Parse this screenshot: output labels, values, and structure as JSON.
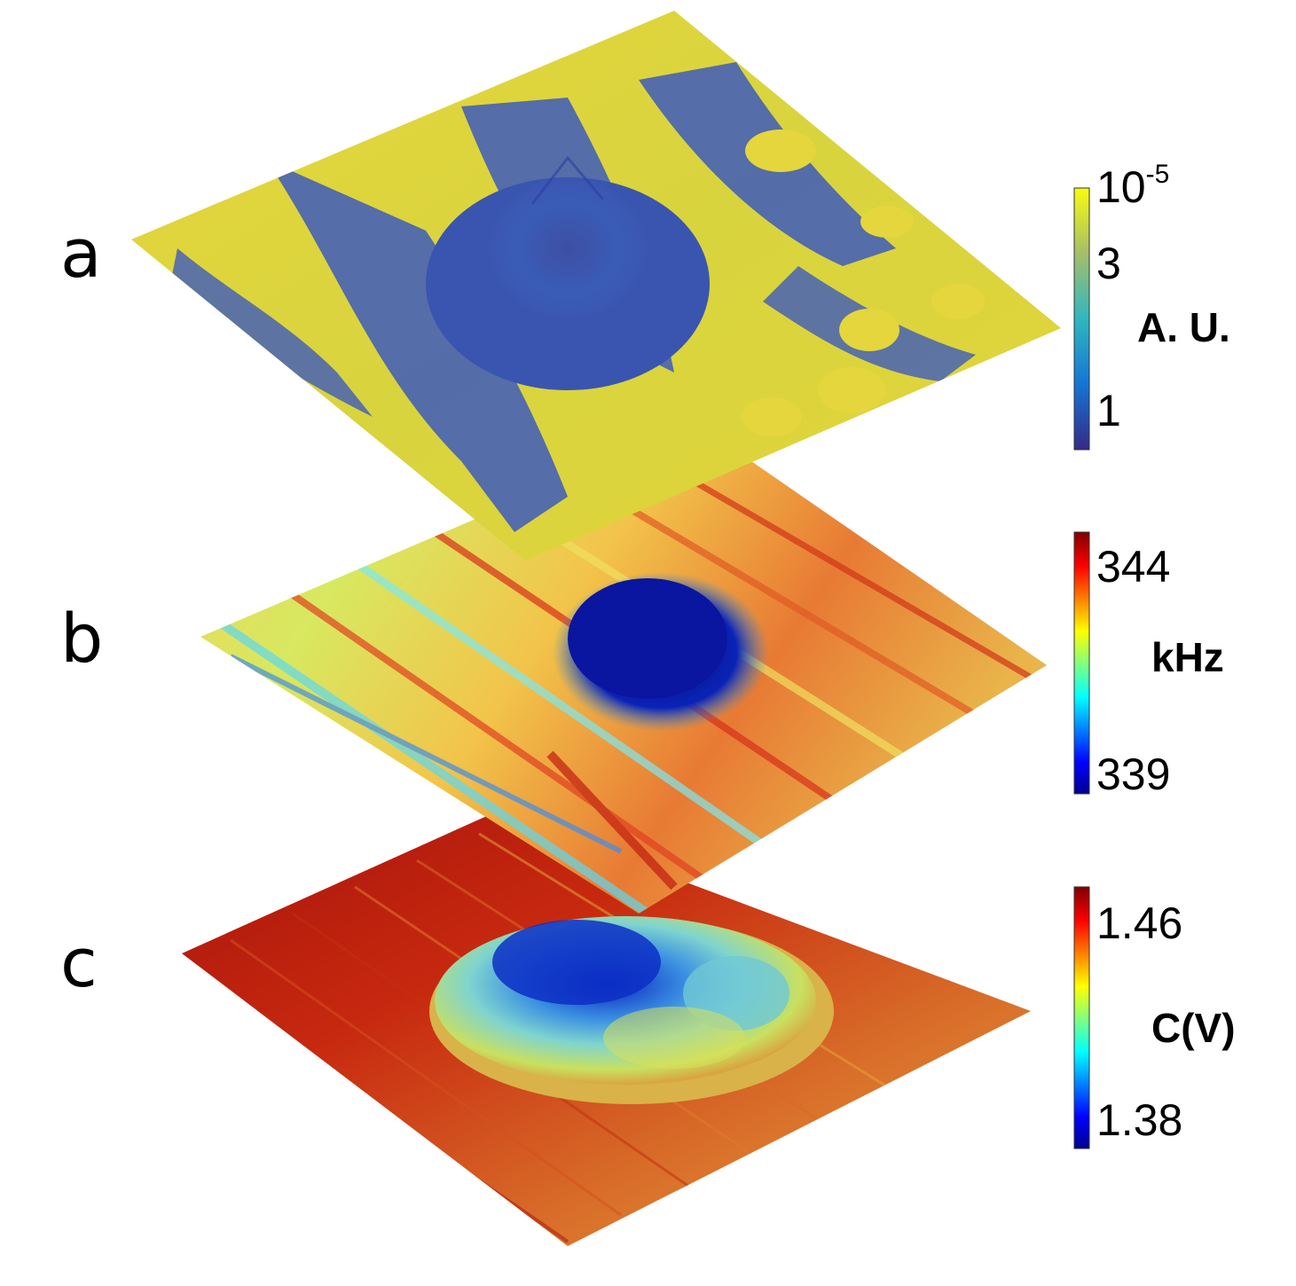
{
  "panels": [
    {
      "letter": "a",
      "colorbar": {
        "ticks": {
          "top": "10",
          "top_exp": "-5",
          "mid": "3",
          "bottom": "1"
        },
        "unit": "A. U."
      },
      "colormap": "parula"
    },
    {
      "letter": "b",
      "colorbar": {
        "ticks": {
          "top": "344",
          "bottom": "339"
        },
        "unit": "kHz"
      },
      "colormap": "jet"
    },
    {
      "letter": "c",
      "colorbar": {
        "ticks": {
          "top": "1.46",
          "bottom": "1.38"
        },
        "unit": "C(V)"
      },
      "colormap": "jet"
    }
  ],
  "colors": {
    "parula_yellow": "#e8d83a",
    "parula_blue": "#3f5fb8",
    "parula_dark": "#2a2f8f",
    "jet_red": "#c1190f",
    "jet_orange": "#e8852a",
    "jet_yellow": "#e4d84a",
    "jet_cyan": "#7fe0e8",
    "jet_blue": "#0a1fb0",
    "jet_darkblue": "#06106e"
  }
}
